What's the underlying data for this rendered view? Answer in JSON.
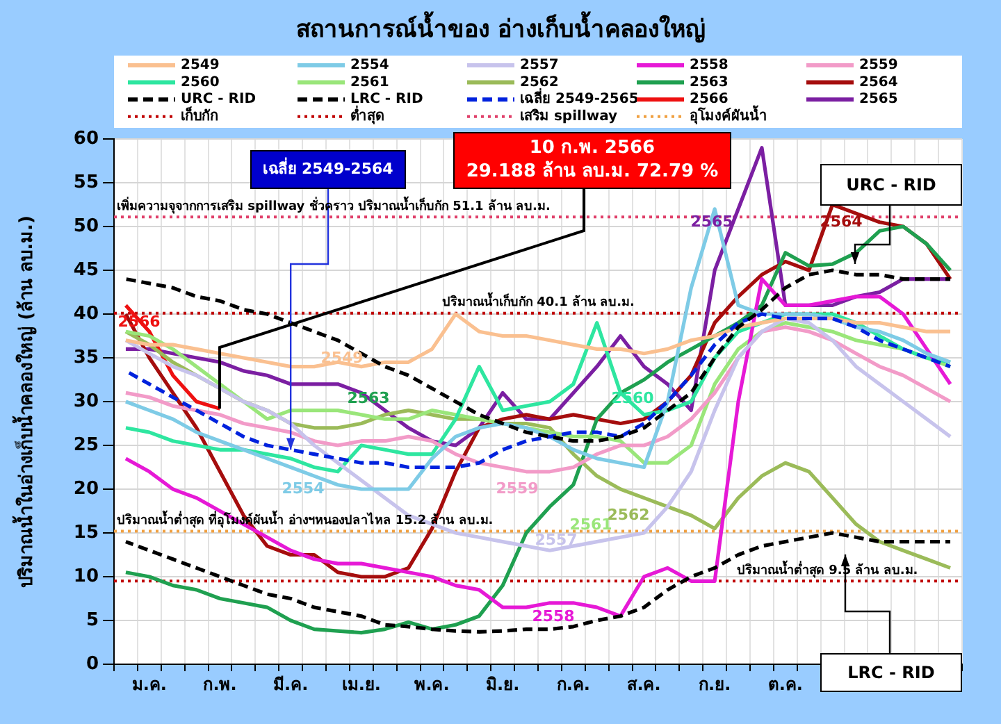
{
  "chart_data": {
    "type": "line",
    "title": "สถานการณ์น้ำของ อ่างเก็บน้ำคลองใหญ่",
    "ylabel": "ปริมาณน้ำในอ่างเก็บน้ำคลองใหญ่ (ล้าน ลบ.ม.)",
    "categories": [
      null,
      "ม.ค.",
      null,
      null,
      "ก.พ.",
      null,
      null,
      "มี.ค.",
      null,
      null,
      "เม.ย.",
      null,
      null,
      "พ.ค.",
      null,
      null,
      "มิ.ย.",
      null,
      null,
      "ก.ค.",
      null,
      null,
      "ส.ค.",
      null,
      null,
      "ก.ย.",
      null,
      null,
      "ต.ค.",
      null,
      null,
      null,
      null,
      null,
      null,
      null
    ],
    "ylim": [
      0,
      60
    ],
    "yticks": [
      0,
      5,
      10,
      15,
      20,
      25,
      30,
      35,
      40,
      45,
      50,
      55,
      60
    ],
    "grid": true,
    "legend": "top",
    "series": [
      {
        "name": "2549",
        "color": "#fac090",
        "values": [
          37,
          36.5,
          36.5,
          36,
          35.5,
          35,
          34.5,
          34,
          34,
          34.5,
          34,
          34.5,
          34.5,
          36,
          40,
          38,
          37.5,
          37.5,
          37,
          36.5,
          36,
          36,
          35.5,
          36,
          37,
          37.5,
          38.5,
          39,
          39.5,
          39.5,
          39.5,
          39,
          39,
          38.5,
          38,
          38
        ]
      },
      {
        "name": "2554",
        "color": "#7ecbe6",
        "values": [
          30,
          29,
          28,
          26.5,
          25.5,
          24.5,
          23.5,
          22.5,
          21.5,
          20.5,
          20,
          20,
          20,
          23.5,
          26,
          27,
          27.5,
          27,
          26,
          24.5,
          23.5,
          23,
          22.5,
          30,
          43,
          52,
          41,
          40,
          40,
          40,
          39.5,
          38.5,
          38,
          37,
          35.5,
          34.5
        ]
      },
      {
        "name": "2557",
        "color": "#c7c3ec",
        "values": [
          37,
          35.5,
          34,
          33,
          31.5,
          30,
          29,
          27.5,
          25,
          23,
          21,
          19,
          17,
          16,
          15,
          14.5,
          14,
          13.5,
          13,
          13.5,
          14,
          14.5,
          15,
          18,
          22,
          29,
          35,
          38,
          39.5,
          39,
          37,
          34,
          32,
          30,
          28,
          26
        ]
      },
      {
        "name": "2558",
        "color": "#e619d6",
        "values": [
          23.5,
          22,
          20,
          19,
          17.5,
          16,
          14.5,
          13,
          12,
          11.5,
          11.5,
          11,
          10.5,
          10,
          9,
          8.5,
          6.5,
          6.5,
          7,
          7,
          6.5,
          5.5,
          10,
          11,
          9.5,
          9.5,
          30,
          44,
          41,
          41,
          41.5,
          42,
          42,
          40,
          36,
          32
        ]
      },
      {
        "name": "2559",
        "color": "#f29bc8",
        "values": [
          31,
          30.5,
          29.5,
          29,
          28.5,
          27.5,
          27,
          26.5,
          25.5,
          25,
          25.5,
          25.5,
          26,
          25.5,
          24,
          23,
          22.5,
          22,
          22,
          22.5,
          24,
          25,
          25,
          26,
          28,
          31,
          35,
          38,
          38.5,
          38,
          37,
          35.5,
          34,
          33,
          31.5,
          30
        ]
      },
      {
        "name": "2560",
        "color": "#2ee6a0",
        "values": [
          27,
          26.5,
          25.5,
          25,
          24.5,
          24.5,
          24,
          23.5,
          22.5,
          22,
          25,
          24.5,
          24,
          24,
          28,
          34,
          29,
          29.5,
          30,
          32,
          39,
          31,
          28.5,
          29,
          30,
          35,
          38,
          39,
          40,
          40,
          40,
          39,
          37.5,
          36,
          35,
          34.5
        ]
      },
      {
        "name": "2561",
        "color": "#9ae67a",
        "values": [
          38,
          37.5,
          36,
          34,
          32,
          30,
          28,
          29,
          29,
          29,
          28.5,
          28,
          28,
          29,
          28.5,
          28,
          27.5,
          27,
          26.5,
          26,
          26,
          25.5,
          23,
          23,
          25,
          32,
          36,
          38,
          39,
          38.5,
          38,
          37,
          36.5,
          36,
          35,
          34
        ]
      },
      {
        "name": "2562",
        "color": "#9bbb59",
        "values": [
          38,
          36.5,
          34.5,
          33,
          31.5,
          30,
          29,
          27.5,
          27,
          27,
          27.5,
          28.5,
          29,
          28.5,
          28,
          28,
          27.5,
          27.5,
          27,
          24,
          21.5,
          20,
          19,
          18,
          17,
          15.5,
          19,
          21.5,
          23,
          22,
          19,
          16,
          14,
          13,
          12,
          11
        ]
      },
      {
        "name": "2563",
        "color": "#1fa050",
        "values": [
          10.5,
          10,
          9,
          8.5,
          7.5,
          7,
          6.5,
          5,
          4,
          3.8,
          3.6,
          4,
          4.8,
          4,
          4.5,
          5.5,
          9,
          15,
          18,
          20.5,
          28,
          31,
          32.5,
          34.5,
          36,
          37.5,
          39,
          41,
          47,
          45.5,
          45.7,
          47,
          49.5,
          50,
          48,
          45
        ]
      },
      {
        "name": "2564",
        "color": "#a50d0d",
        "values": [
          40,
          35,
          31,
          27,
          22,
          17,
          13.5,
          12.5,
          12.5,
          10.5,
          10,
          10,
          11,
          15.5,
          22,
          27,
          28,
          28.5,
          28,
          28.5,
          28,
          27.5,
          28,
          30,
          33,
          39,
          42,
          44.5,
          46,
          45,
          52.5,
          51.5,
          50.5,
          50,
          48,
          44
        ]
      },
      {
        "name": "URC - RID",
        "color": "#000000",
        "line_style": "dashed",
        "values": [
          44,
          43.5,
          43,
          42,
          41.5,
          40.5,
          40,
          39,
          38,
          37,
          35.5,
          34,
          33,
          31.5,
          30,
          28.5,
          27.5,
          26.5,
          26,
          25.5,
          25.5,
          26,
          27,
          29,
          31,
          35,
          38.5,
          40.5,
          43,
          44.5,
          45,
          44.5,
          44.5,
          44,
          44,
          44
        ]
      },
      {
        "name": "LRC - RID",
        "color": "#000000",
        "line_style": "dashed",
        "values": [
          14,
          13,
          12,
          11,
          10,
          9,
          8,
          7.5,
          6.5,
          6,
          5.5,
          4.5,
          4.3,
          4,
          3.8,
          3.7,
          3.8,
          4,
          4,
          4.3,
          5,
          5.5,
          6.5,
          8.5,
          10,
          11,
          12.5,
          13.5,
          14,
          14.5,
          15,
          14.5,
          14,
          14,
          14,
          14
        ]
      },
      {
        "name": "เฉลี่ย 2549-2565",
        "color": "#0022dd",
        "line_style": "dashed",
        "values": [
          33.5,
          32,
          30.5,
          29,
          27.5,
          26,
          25,
          24.5,
          24,
          23.5,
          23,
          23,
          22.5,
          22.5,
          22.5,
          23,
          24.5,
          25.5,
          26,
          26.5,
          26.5,
          26,
          27.5,
          30,
          33,
          36.5,
          39,
          40,
          39.5,
          39.5,
          39.5,
          38.5,
          37,
          36,
          35,
          34
        ]
      },
      {
        "name": "2566",
        "color": "#ee1111",
        "values": [
          41,
          38,
          33,
          30,
          29.188,
          null,
          null,
          null,
          null,
          null,
          null,
          null,
          null,
          null,
          null,
          null,
          null,
          null,
          null,
          null,
          null,
          null,
          null,
          null,
          null,
          null,
          null,
          null,
          null,
          null,
          null,
          null,
          null,
          null,
          null,
          null
        ]
      },
      {
        "name": "2565",
        "color": "#7b1fa2",
        "values": [
          36,
          36,
          35.5,
          35,
          34.5,
          33.5,
          33,
          32,
          32,
          32,
          31,
          29,
          27,
          25.5,
          25,
          27,
          31,
          28,
          28,
          31,
          34,
          37.5,
          34,
          32,
          29,
          45,
          52,
          59,
          41,
          41,
          41,
          42,
          42.5,
          44,
          44,
          44
        ]
      }
    ],
    "ref_lines": [
      {
        "axis": "y",
        "value": 40.1,
        "label": "เก็บกัก",
        "color": "#c00000",
        "line_style": "dotted"
      },
      {
        "axis": "y",
        "value": 9.5,
        "label": "ต่ำสุด",
        "color": "#c00000",
        "line_style": "dotted"
      },
      {
        "axis": "y",
        "value": 51.1,
        "label": "เสริม spillway",
        "color": "#e0406a",
        "line_style": "dotted"
      },
      {
        "axis": "y",
        "value": 15.2,
        "label": "อุโมงค์ผันน้ำ",
        "color": "#f0a040",
        "line_style": "dotted"
      }
    ],
    "annotations": [
      {
        "text": "เพิ่มความจุจากการเสริม spillway ชั่วคราว ปริมาณน้ำเก็บกัก 51.1 ล้าน ลบ.ม.",
        "y": 51.1
      },
      {
        "text": "ปริมาณน้ำเก็บกัก 40.1 ล้าน ลบ.ม.",
        "y": 40.1
      },
      {
        "text": "ปริมาณน้ำต่ำสุด ที่อุโมงค์ผันน้ำ อ่างฯหนองปลาไหล 15.2 ล้าน ลบ.ม.",
        "y": 15.2
      },
      {
        "text": "ปริมาณน้ำต่ำสุด 9.5 ล้าน ลบ.ม.",
        "y": 9.5
      },
      {
        "text": "เฉลี่ย 2549-2564",
        "x": "มี.ค.",
        "y": 24.5
      },
      "10 ก.พ. 2566",
      "29.188 ล้าน ลบ.ม. 72.79 %",
      "URC - RID",
      "LRC - RID",
      "2566",
      "2549",
      "2563",
      "2554",
      "2559",
      "2561",
      "2562",
      "2557",
      "2558",
      "2560",
      "2565",
      "2564"
    ]
  }
}
